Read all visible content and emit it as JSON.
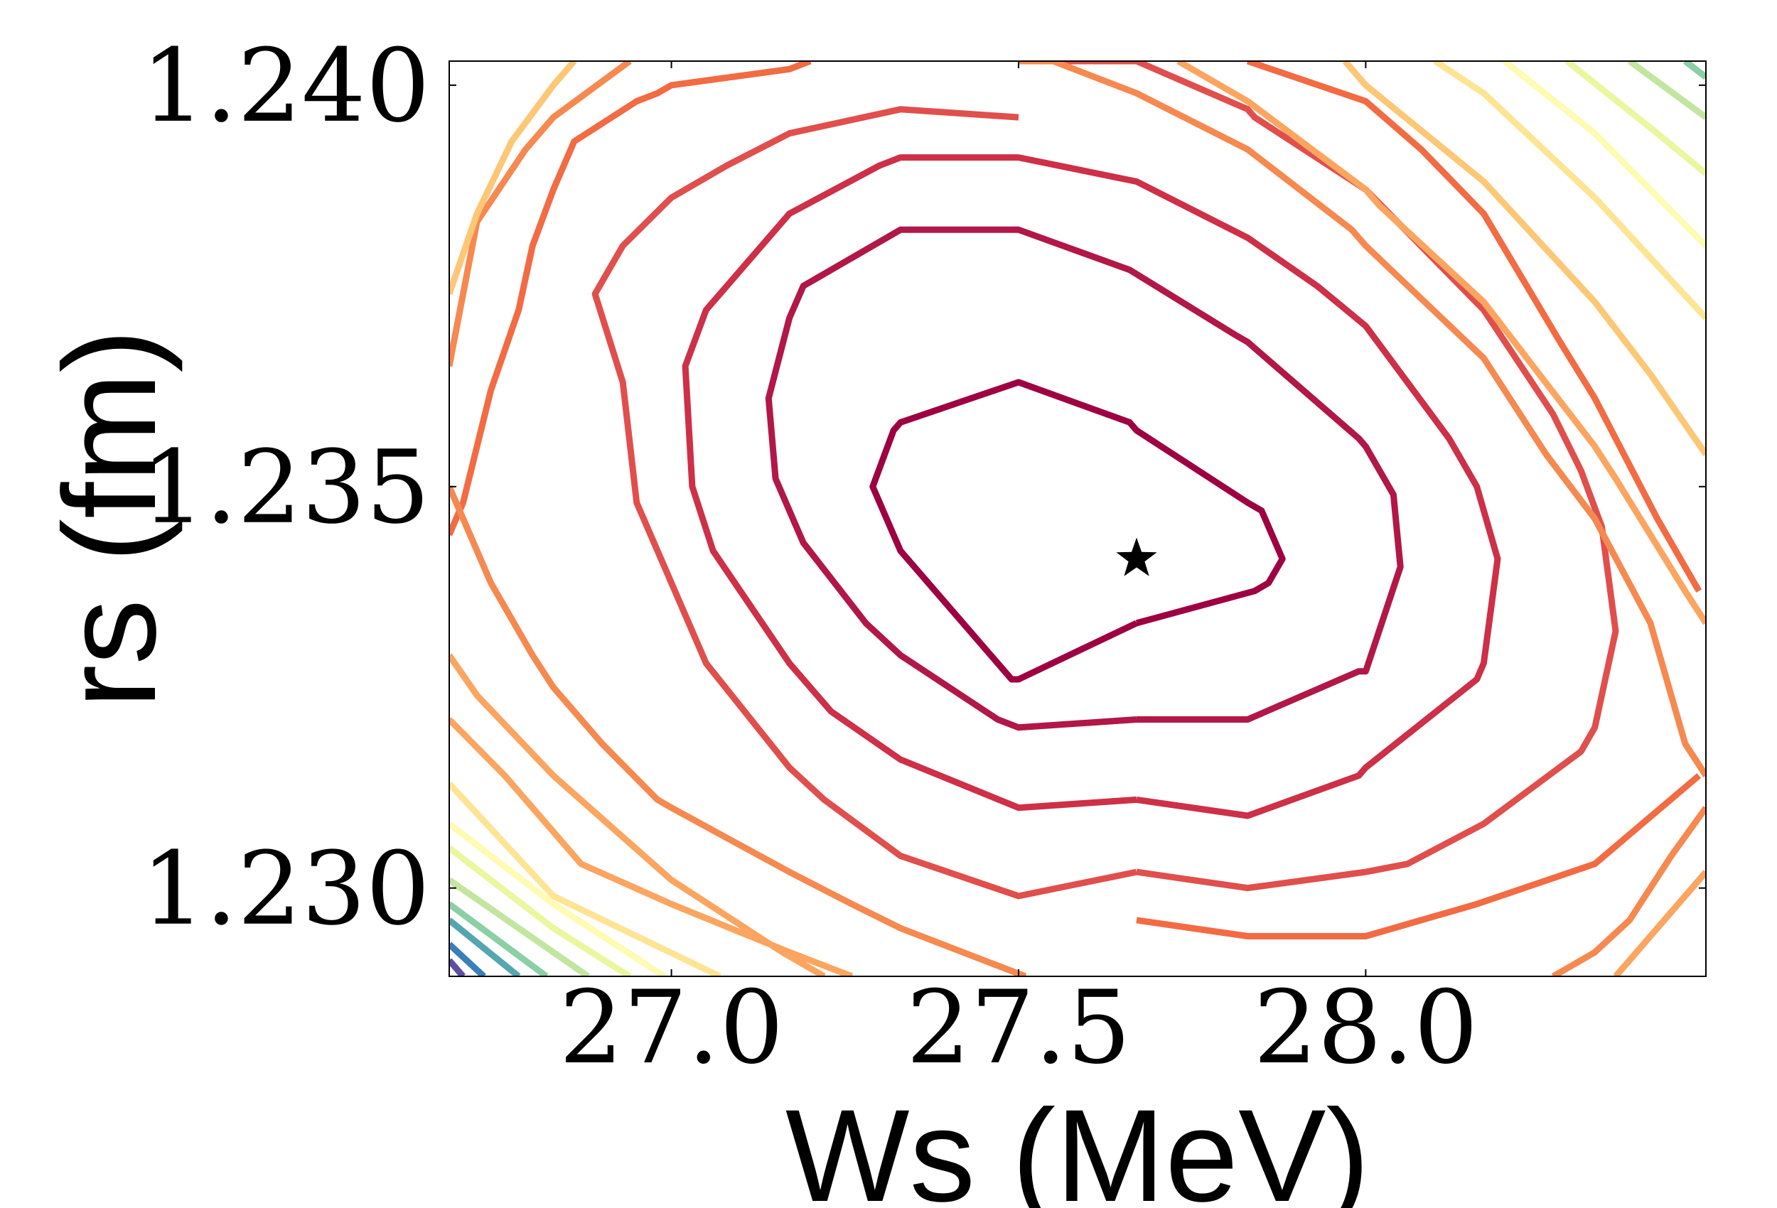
{
  "chart_data": {
    "type": "contour",
    "xlabel": "Ws (MeV)",
    "ylabel": "rs (fm)",
    "xlim": [
      26.68,
      28.49
    ],
    "ylim": [
      1.2289,
      1.2403
    ],
    "x_ticks": [
      {
        "value": 27.0,
        "label": "27.0"
      },
      {
        "value": 27.5,
        "label": "27.5"
      },
      {
        "value": 28.0,
        "label": "28.0"
      }
    ],
    "y_ticks": [
      {
        "value": 1.23,
        "label": "1.230"
      },
      {
        "value": 1.235,
        "label": "1.235"
      },
      {
        "value": 1.24,
        "label": "1.240"
      }
    ],
    "minimum": {
      "x": 27.67,
      "y": 1.2341,
      "marker": "star"
    },
    "levels": [
      {
        "level": 1,
        "color": "#9e0142",
        "points": [
          [
            27.67,
            1.2333
          ],
          [
            27.84,
            1.2337
          ],
          [
            27.86,
            1.2338
          ],
          [
            27.88,
            1.2341
          ],
          [
            27.85,
            1.2347
          ],
          [
            27.83,
            1.2348
          ],
          [
            27.67,
            1.2357
          ],
          [
            27.66,
            1.2358
          ],
          [
            27.5,
            1.2363
          ],
          [
            27.33,
            1.2358
          ],
          [
            27.32,
            1.2357
          ],
          [
            27.29,
            1.235
          ],
          [
            27.32,
            1.2344
          ],
          [
            27.33,
            1.2342
          ],
          [
            27.49,
            1.2326
          ],
          [
            27.5,
            1.2326
          ],
          [
            27.67,
            1.2333
          ]
        ]
      },
      {
        "level": 2,
        "color": "#b11747",
        "points": [
          [
            27.67,
            1.2321
          ],
          [
            27.83,
            1.2321
          ],
          [
            27.99,
            1.2327
          ],
          [
            28.0,
            1.2327
          ],
          [
            28.05,
            1.234
          ],
          [
            28.04,
            1.2349
          ],
          [
            28.0,
            1.2355
          ],
          [
            27.99,
            1.2356
          ],
          [
            27.83,
            1.2368
          ],
          [
            27.81,
            1.2369
          ],
          [
            27.66,
            1.2377
          ],
          [
            27.5,
            1.2382
          ],
          [
            27.33,
            1.2382
          ],
          [
            27.19,
            1.2375
          ],
          [
            27.17,
            1.2371
          ],
          [
            27.14,
            1.2361
          ],
          [
            27.15,
            1.2351
          ],
          [
            27.18,
            1.2345
          ],
          [
            27.19,
            1.2343
          ],
          [
            27.28,
            1.2333
          ],
          [
            27.33,
            1.2329
          ],
          [
            27.47,
            1.2321
          ],
          [
            27.5,
            1.232
          ],
          [
            27.67,
            1.2321
          ]
        ]
      },
      {
        "level": 3,
        "color": "#cd3047",
        "points": [
          [
            27.67,
            1.2311
          ],
          [
            27.83,
            1.2309
          ],
          [
            27.99,
            1.2314
          ],
          [
            28.0,
            1.2315
          ],
          [
            28.16,
            1.2326
          ],
          [
            28.17,
            1.2328
          ],
          [
            28.19,
            1.2341
          ],
          [
            28.16,
            1.235
          ],
          [
            28.12,
            1.2356
          ],
          [
            28.0,
            1.237
          ],
          [
            27.93,
            1.2375
          ],
          [
            27.83,
            1.2381
          ],
          [
            27.67,
            1.2388
          ],
          [
            27.5,
            1.2391
          ],
          [
            27.33,
            1.2391
          ],
          [
            27.3,
            1.239
          ],
          [
            27.17,
            1.2384
          ],
          [
            27.05,
            1.2372
          ],
          [
            27.02,
            1.2365
          ],
          [
            27.03,
            1.235
          ],
          [
            27.06,
            1.2342
          ],
          [
            27.17,
            1.2328
          ],
          [
            27.23,
            1.2322
          ],
          [
            27.33,
            1.2316
          ],
          [
            27.5,
            1.231
          ],
          [
            27.67,
            1.2311
          ]
        ]
      },
      {
        "level": 4,
        "color": "#e04f4c",
        "points": [
          [
            27.67,
            1.2302
          ],
          [
            27.83,
            1.23
          ],
          [
            28.0,
            1.2302
          ],
          [
            28.06,
            1.2303
          ],
          [
            28.17,
            1.2308
          ],
          [
            28.31,
            1.2317
          ],
          [
            28.33,
            1.232
          ],
          [
            28.36,
            1.2332
          ],
          [
            28.34,
            1.2345
          ],
          [
            28.31,
            1.2352
          ],
          [
            28.27,
            1.2359
          ],
          [
            28.17,
            1.2372
          ],
          [
            28.0,
            1.2387
          ],
          [
            27.84,
            1.2396
          ],
          [
            27.83,
            1.2397
          ],
          [
            27.67,
            1.2403
          ],
          [
            27.5,
            1.2403
          ]
        ]
      },
      {
        "level": 4,
        "color": "#e04f4c",
        "points": [
          [
            27.5,
            1.2396
          ],
          [
            27.33,
            1.2397
          ],
          [
            27.17,
            1.2394
          ],
          [
            27.08,
            1.239
          ],
          [
            27.0,
            1.2386
          ],
          [
            26.93,
            1.238
          ],
          [
            26.89,
            1.2374
          ],
          [
            26.93,
            1.2363
          ],
          [
            26.95,
            1.2348
          ],
          [
            27.0,
            1.2338
          ],
          [
            27.05,
            1.2328
          ],
          [
            27.17,
            1.2315
          ],
          [
            27.22,
            1.2311
          ],
          [
            27.33,
            1.2304
          ],
          [
            27.5,
            1.2299
          ],
          [
            27.67,
            1.2302
          ]
        ]
      },
      {
        "level": 5,
        "color": "#f26b43",
        "points": [
          [
            27.67,
            1.2296
          ],
          [
            27.83,
            1.2294
          ],
          [
            28.0,
            1.2294
          ],
          [
            28.16,
            1.2298
          ],
          [
            28.33,
            1.2303
          ],
          [
            28.48,
            1.2314
          ]
        ]
      },
      {
        "level": 5,
        "color": "#f26b43",
        "points": [
          [
            28.48,
            1.2337
          ],
          [
            28.42,
            1.2346
          ],
          [
            28.33,
            1.2361
          ],
          [
            28.28,
            1.2368
          ],
          [
            28.17,
            1.2384
          ],
          [
            28.08,
            1.2392
          ],
          [
            28.0,
            1.2398
          ],
          [
            27.83,
            1.2403
          ]
        ]
      },
      {
        "level": 5,
        "color": "#f26b43",
        "points": [
          [
            27.2,
            1.2403
          ],
          [
            27.17,
            1.2402
          ],
          [
            27.0,
            1.24
          ],
          [
            26.98,
            1.2399
          ],
          [
            26.95,
            1.2398
          ],
          [
            26.86,
            1.2393
          ],
          [
            26.83,
            1.2387
          ],
          [
            26.8,
            1.238
          ],
          [
            26.78,
            1.2372
          ],
          [
            26.74,
            1.2362
          ],
          [
            26.7,
            1.2348
          ],
          [
            26.68,
            1.2344
          ]
        ]
      },
      {
        "level": 6,
        "color": "#f6894f",
        "points": [
          [
            27.5,
            1.2403
          ],
          [
            27.55,
            1.2403
          ],
          [
            27.67,
            1.2399
          ],
          [
            27.83,
            1.2392
          ],
          [
            27.98,
            1.2382
          ],
          [
            28.0,
            1.238
          ],
          [
            28.17,
            1.2366
          ],
          [
            28.26,
            1.2354
          ],
          [
            28.33,
            1.2346
          ],
          [
            28.41,
            1.2333
          ],
          [
            28.46,
            1.2318
          ],
          [
            28.49,
            1.2314
          ]
        ]
      },
      {
        "level": 6,
        "color": "#f6894f",
        "points": [
          [
            28.27,
            1.2289
          ],
          [
            28.33,
            1.2292
          ],
          [
            28.38,
            1.2296
          ],
          [
            28.44,
            1.2304
          ],
          [
            28.49,
            1.231
          ]
        ]
      },
      {
        "level": 6,
        "color": "#f6894f",
        "points": [
          [
            26.68,
            1.2365
          ],
          [
            26.7,
            1.2374
          ],
          [
            26.72,
            1.2383
          ],
          [
            26.79,
            1.2392
          ],
          [
            26.83,
            1.2396
          ],
          [
            26.94,
            1.2403
          ]
        ]
      },
      {
        "level": 6,
        "color": "#f6894f",
        "points": [
          [
            27.51,
            1.2289
          ],
          [
            27.33,
            1.2295
          ],
          [
            27.26,
            1.2298
          ],
          [
            27.17,
            1.2302
          ],
          [
            27.0,
            1.231
          ],
          [
            26.98,
            1.2311
          ],
          [
            26.9,
            1.2318
          ],
          [
            26.83,
            1.2325
          ],
          [
            26.8,
            1.2329
          ],
          [
            26.74,
            1.2338
          ],
          [
            26.72,
            1.2342
          ],
          [
            26.68,
            1.235
          ]
        ]
      },
      {
        "level": 7,
        "color": "#fba560",
        "points": [
          [
            27.26,
            1.2289
          ],
          [
            27.17,
            1.2292
          ],
          [
            27.0,
            1.2298
          ],
          [
            26.87,
            1.2303
          ],
          [
            26.83,
            1.2307
          ],
          [
            26.76,
            1.2314
          ],
          [
            26.68,
            1.2321
          ]
        ]
      },
      {
        "level": 7,
        "color": "#fba560",
        "points": [
          [
            26.68,
            1.2329
          ],
          [
            26.72,
            1.2324
          ],
          [
            26.83,
            1.2314
          ],
          [
            27.0,
            1.2301
          ],
          [
            27.16,
            1.2292
          ],
          [
            27.22,
            1.2289
          ]
        ]
      },
      {
        "level": 7,
        "color": "#fba560",
        "points": [
          [
            27.73,
            1.2403
          ],
          [
            27.83,
            1.2398
          ],
          [
            28.0,
            1.2387
          ],
          [
            28.02,
            1.2385
          ],
          [
            28.17,
            1.2373
          ],
          [
            28.33,
            1.2355
          ],
          [
            28.36,
            1.2351
          ],
          [
            28.46,
            1.2337
          ],
          [
            28.49,
            1.2333
          ]
        ]
      },
      {
        "level": 7,
        "color": "#fba560",
        "points": [
          [
            28.36,
            1.2289
          ],
          [
            28.49,
            1.2302
          ]
        ]
      },
      {
        "level": 8,
        "color": "#fdc776",
        "points": [
          [
            26.68,
            1.2374
          ],
          [
            26.72,
            1.2384
          ],
          [
            26.77,
            1.2393
          ],
          [
            26.83,
            1.24
          ],
          [
            26.86,
            1.2403
          ]
        ]
      },
      {
        "level": 8,
        "color": "#fdc776",
        "points": [
          [
            27.97,
            1.2403
          ],
          [
            28.0,
            1.24
          ],
          [
            28.17,
            1.2388
          ],
          [
            28.33,
            1.2373
          ],
          [
            28.41,
            1.2364
          ],
          [
            28.49,
            1.2354
          ]
        ]
      },
      {
        "level": 9,
        "color": "#fee493",
        "points": [
          [
            27.07,
            1.2289
          ],
          [
            26.83,
            1.2299
          ],
          [
            26.68,
            1.2313
          ]
        ]
      },
      {
        "level": 9,
        "color": "#fee493",
        "points": [
          [
            28.1,
            1.2403
          ],
          [
            28.17,
            1.2399
          ],
          [
            28.33,
            1.2386
          ],
          [
            28.49,
            1.2371
          ]
        ]
      },
      {
        "level": 10,
        "color": "#fefbb2",
        "points": [
          [
            26.99,
            1.2289
          ],
          [
            26.83,
            1.2298
          ],
          [
            26.68,
            1.2308
          ]
        ]
      },
      {
        "level": 10,
        "color": "#fefbb2",
        "points": [
          [
            28.2,
            1.2403
          ],
          [
            28.33,
            1.2394
          ],
          [
            28.49,
            1.238
          ]
        ]
      },
      {
        "level": 11,
        "color": "#eaf79f",
        "points": [
          [
            26.94,
            1.2289
          ],
          [
            26.83,
            1.2295
          ],
          [
            26.68,
            1.2305
          ]
        ]
      },
      {
        "level": 11,
        "color": "#eaf79f",
        "points": [
          [
            28.29,
            1.2403
          ],
          [
            28.42,
            1.2394
          ],
          [
            28.49,
            1.2389
          ]
        ]
      },
      {
        "level": 12,
        "color": "#c2e69f",
        "points": [
          [
            26.88,
            1.2289
          ],
          [
            26.68,
            1.2301
          ]
        ]
      },
      {
        "level": 12,
        "color": "#c2e69f",
        "points": [
          [
            28.38,
            1.2403
          ],
          [
            28.49,
            1.2396
          ]
        ]
      },
      {
        "level": 13,
        "color": "#8bcfa4",
        "points": [
          [
            26.82,
            1.2289
          ],
          [
            26.68,
            1.2298
          ]
        ]
      },
      {
        "level": 13,
        "color": "#8bcfa4",
        "points": [
          [
            28.46,
            1.2403
          ],
          [
            28.49,
            1.2401
          ]
        ]
      },
      {
        "level": 14,
        "color": "#55a6b1",
        "points": [
          [
            26.78,
            1.2289
          ],
          [
            26.68,
            1.2296
          ]
        ]
      },
      {
        "level": 15,
        "color": "#3a7fb8",
        "points": [
          [
            26.73,
            1.2289
          ],
          [
            26.68,
            1.2293
          ]
        ]
      },
      {
        "level": 16,
        "color": "#5e4fa2",
        "points": [
          [
            26.7,
            1.2289
          ],
          [
            26.68,
            1.2291
          ]
        ]
      }
    ]
  }
}
